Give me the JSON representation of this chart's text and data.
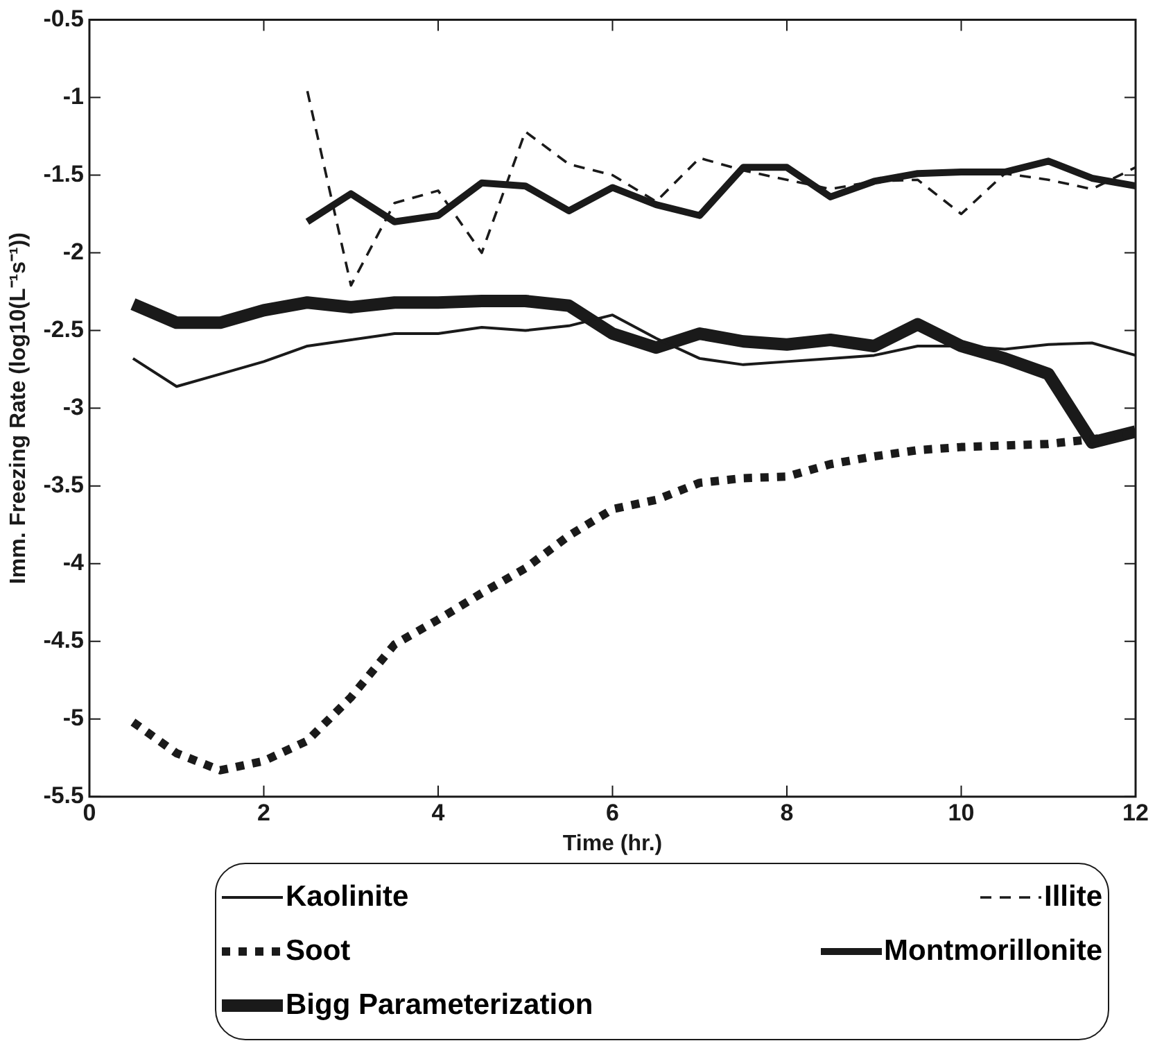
{
  "chart_data": {
    "type": "line",
    "xlabel": "Time (hr.)",
    "ylabel": "Imm. Freezing Rate (log10(L⁻¹s⁻¹))",
    "xlim": [
      0,
      12
    ],
    "xticks": [
      0,
      2,
      4,
      6,
      8,
      10,
      12
    ],
    "ylim": [
      -5.5,
      -0.5
    ],
    "yticks": [
      -5.5,
      -5,
      -4.5,
      -4,
      -3.5,
      -3,
      -2.5,
      -2,
      -1.5,
      -1,
      -0.5
    ],
    "grid": false,
    "legend": "bottom",
    "marker": "none",
    "x": [
      0.5,
      1,
      1.5,
      2,
      2.5,
      3,
      3.5,
      4,
      4.5,
      5,
      5.5,
      6,
      6.5,
      7,
      7.5,
      8,
      8.5,
      9,
      9.5,
      10,
      10.5,
      11,
      11.5,
      12
    ],
    "series": [
      {
        "name": "Kaolinite",
        "color": "#1a1a1a",
        "line_style": "solid",
        "values": [
          -2.68,
          -2.86,
          -2.78,
          -2.7,
          -2.6,
          -2.56,
          -2.52,
          -2.52,
          -2.48,
          -2.5,
          -2.47,
          -2.4,
          -2.55,
          -2.68,
          -2.72,
          -2.7,
          -2.68,
          -2.66,
          -2.6,
          -2.6,
          -2.62,
          -2.59,
          -2.58,
          -2.66
        ]
      },
      {
        "name": "Illite",
        "color": "#1a1a1a",
        "line_style": "dashed",
        "values": [
          null,
          null,
          null,
          null,
          -0.96,
          -2.21,
          -1.68,
          -1.6,
          -2.0,
          -1.22,
          -1.43,
          -1.5,
          -1.67,
          -1.39,
          -1.47,
          -1.53,
          -1.59,
          -1.54,
          -1.53,
          -1.75,
          -1.49,
          -1.53,
          -1.59,
          -1.45
        ]
      },
      {
        "name": "Soot",
        "color": "#1a1a1a",
        "line_style": "dotted",
        "values": [
          -5.02,
          -5.22,
          -5.33,
          -5.27,
          -5.14,
          -4.86,
          -4.52,
          -4.36,
          -4.19,
          -4.03,
          -3.82,
          -3.65,
          -3.59,
          -3.48,
          -3.45,
          -3.44,
          -3.36,
          -3.31,
          -3.27,
          -3.25,
          -3.24,
          -3.23,
          -3.2,
          -3.16
        ]
      },
      {
        "name": "Montmorillonite",
        "color": "#1a1a1a",
        "line_style": "solid",
        "values": [
          null,
          null,
          null,
          null,
          -1.8,
          -1.62,
          -1.8,
          -1.76,
          -1.55,
          -1.57,
          -1.73,
          -1.58,
          -1.69,
          -1.76,
          -1.45,
          -1.45,
          -1.64,
          -1.54,
          -1.49,
          -1.48,
          -1.48,
          -1.41,
          -1.52,
          -1.57
        ]
      },
      {
        "name": "Bigg Parameterization",
        "color": "#1a1a1a",
        "line_style": "solid",
        "values": [
          -2.33,
          -2.45,
          -2.45,
          -2.37,
          -2.32,
          -2.35,
          -2.32,
          -2.32,
          -2.31,
          -2.31,
          -2.34,
          -2.52,
          -2.61,
          -2.52,
          -2.57,
          -2.59,
          -2.56,
          -2.6,
          -2.46,
          -2.6,
          -2.68,
          -2.78,
          -3.22,
          -3.15
        ]
      }
    ]
  }
}
